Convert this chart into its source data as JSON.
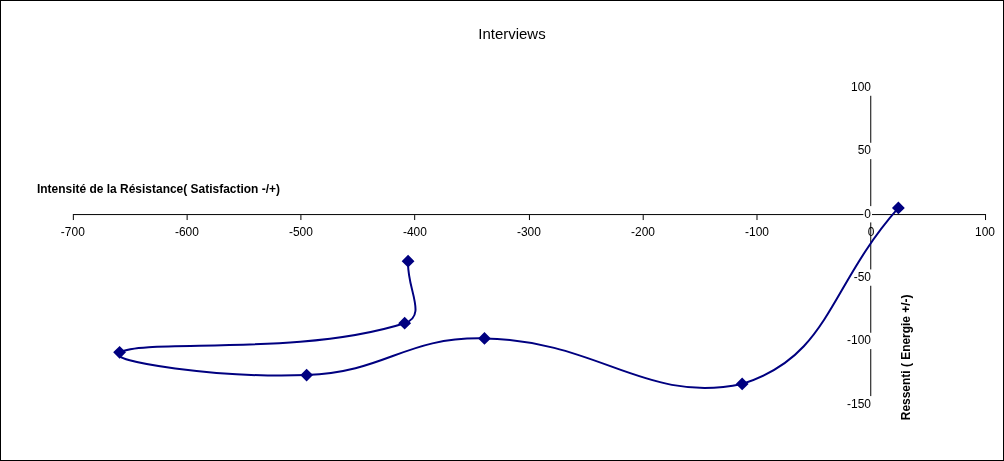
{
  "chart_data": {
    "type": "line",
    "title": "Interviews",
    "xlabel": "Intensité de la Résistance( Satisfaction -/+)",
    "ylabel": "Ressenti ( Energie +/-)",
    "x": [
      -406,
      -409,
      -659,
      -495,
      -339,
      -113,
      24
    ],
    "series": [
      {
        "color": "#000080",
        "values": [
          -37,
          -86,
          -109,
          -127,
          -98,
          -134,
          5
        ]
      }
    ],
    "xlim": [
      -700,
      100
    ],
    "xticks": [
      -700,
      -600,
      -500,
      -400,
      -300,
      -200,
      -100,
      0,
      100
    ],
    "ylim": [
      -150,
      100
    ],
    "yticks": [
      -150,
      -100,
      -50,
      0,
      50,
      100
    ],
    "marker": "diamond",
    "line_style": "solid",
    "grid": false,
    "legend": false
  }
}
